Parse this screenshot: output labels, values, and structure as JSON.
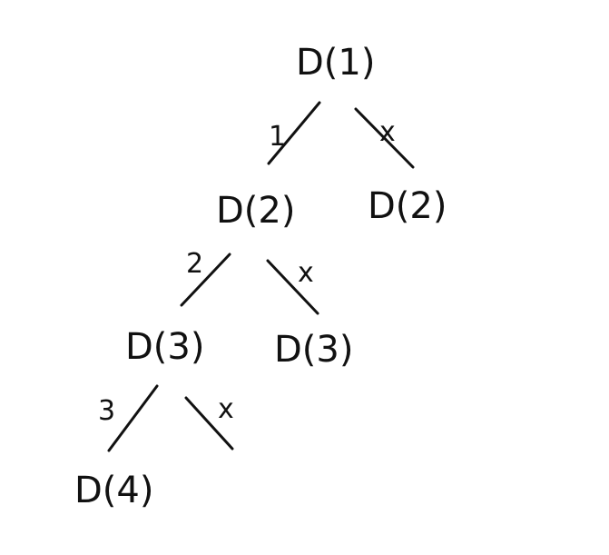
{
  "diagram": {
    "nodes": [
      {
        "id": "n1",
        "label": "D(1)"
      },
      {
        "id": "n2",
        "label": "D(2)"
      },
      {
        "id": "n2b",
        "label": "D(2)"
      },
      {
        "id": "n3",
        "label": "D(3)"
      },
      {
        "id": "n3b",
        "label": "D(3)"
      },
      {
        "id": "n4",
        "label": "D(4)"
      }
    ],
    "edges": [
      {
        "from": "n1",
        "to": "n2",
        "label": "1"
      },
      {
        "from": "n1",
        "to": "n2b",
        "label": "x"
      },
      {
        "from": "n2",
        "to": "n3",
        "label": "2"
      },
      {
        "from": "n2",
        "to": "n3b",
        "label": "x"
      },
      {
        "from": "n3",
        "to": "n4",
        "label": "3"
      },
      {
        "from": "n3",
        "to": "n3c",
        "label": "x"
      }
    ]
  }
}
